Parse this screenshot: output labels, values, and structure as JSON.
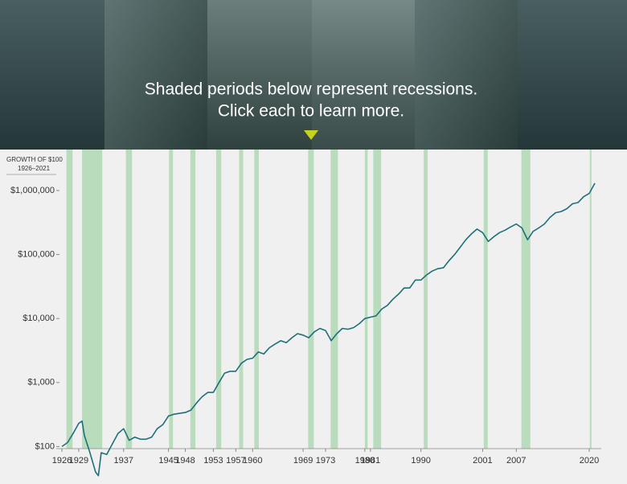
{
  "header": {
    "lines": [
      "Shaded periods below represent recessions.",
      "Click each to learn more."
    ]
  },
  "chart_data": {
    "type": "line",
    "y_label": [
      "GROWTH OF $100",
      "1926–2021"
    ],
    "yscale": "log",
    "xlim": [
      1926,
      2021
    ],
    "ylim": [
      30,
      3000000
    ],
    "xticks": [
      1926,
      1929,
      1937,
      1945,
      1948,
      1953,
      1957,
      1960,
      1969,
      1973,
      1980,
      1981,
      1990,
      2001,
      2007,
      2020
    ],
    "yticks": [
      {
        "value": 100,
        "label": "$100"
      },
      {
        "value": 1000,
        "label": "$1,000"
      },
      {
        "value": 10000,
        "label": "$10,000"
      },
      {
        "value": 100000,
        "label": "$100,000"
      },
      {
        "value": 1000000,
        "label": "$1,000,000"
      }
    ],
    "color": "#1f6f7a",
    "recession_color": "#b9dcbc",
    "recessions": [
      [
        1926.8,
        1927.9
      ],
      [
        1929.6,
        1933.2
      ],
      [
        1937.4,
        1938.5
      ],
      [
        1945.1,
        1945.8
      ],
      [
        1948.9,
        1949.8
      ],
      [
        1953.5,
        1954.4
      ],
      [
        1957.6,
        1958.3
      ],
      [
        1960.3,
        1961.1
      ],
      [
        1969.9,
        1970.9
      ],
      [
        1973.9,
        1975.2
      ],
      [
        1980.0,
        1980.5
      ],
      [
        1981.5,
        1982.9
      ],
      [
        1990.5,
        1991.2
      ],
      [
        2001.2,
        2001.9
      ],
      [
        2007.9,
        2009.5
      ],
      [
        2020.1,
        2020.4
      ]
    ],
    "x": [
      1926,
      1927,
      1928,
      1929,
      1929.6,
      1930,
      1931,
      1932,
      1932.5,
      1933,
      1934,
      1935,
      1936,
      1937,
      1938,
      1939,
      1940,
      1941,
      1942,
      1943,
      1944,
      1945,
      1946,
      1947,
      1948,
      1949,
      1950,
      1951,
      1952,
      1953,
      1954,
      1955,
      1956,
      1957,
      1958,
      1959,
      1960,
      1961,
      1962,
      1963,
      1964,
      1965,
      1966,
      1967,
      1968,
      1969,
      1970,
      1971,
      1972,
      1973,
      1974,
      1975,
      1976,
      1977,
      1978,
      1979,
      1980,
      1981,
      1982,
      1983,
      1984,
      1985,
      1986,
      1987,
      1988,
      1989,
      1990,
      1991,
      1992,
      1993,
      1994,
      1995,
      1996,
      1997,
      1998,
      1999,
      2000,
      2001,
      2002,
      2003,
      2004,
      2005,
      2006,
      2007,
      2008,
      2009,
      2010,
      2011,
      2012,
      2013,
      2014,
      2015,
      2016,
      2017,
      2018,
      2019,
      2020,
      2021
    ],
    "values": [
      100,
      115,
      160,
      230,
      250,
      150,
      80,
      40,
      35,
      80,
      75,
      110,
      160,
      190,
      125,
      140,
      130,
      130,
      140,
      190,
      220,
      300,
      320,
      330,
      340,
      370,
      480,
      600,
      700,
      700,
      1000,
      1400,
      1500,
      1500,
      2000,
      2300,
      2400,
      3000,
      2800,
      3500,
      4000,
      4500,
      4200,
      5000,
      5800,
      5500,
      5000,
      6200,
      7000,
      6500,
      4500,
      5800,
      7000,
      6800,
      7200,
      8300,
      10000,
      10500,
      11000,
      14000,
      16000,
      20000,
      24000,
      30000,
      30000,
      40000,
      40000,
      48000,
      55000,
      60000,
      62000,
      80000,
      100000,
      130000,
      170000,
      210000,
      250000,
      220000,
      160000,
      190000,
      220000,
      240000,
      270000,
      300000,
      260000,
      170000,
      230000,
      260000,
      300000,
      380000,
      450000,
      470000,
      520000,
      620000,
      650000,
      800000,
      900000,
      1300000
    ]
  }
}
